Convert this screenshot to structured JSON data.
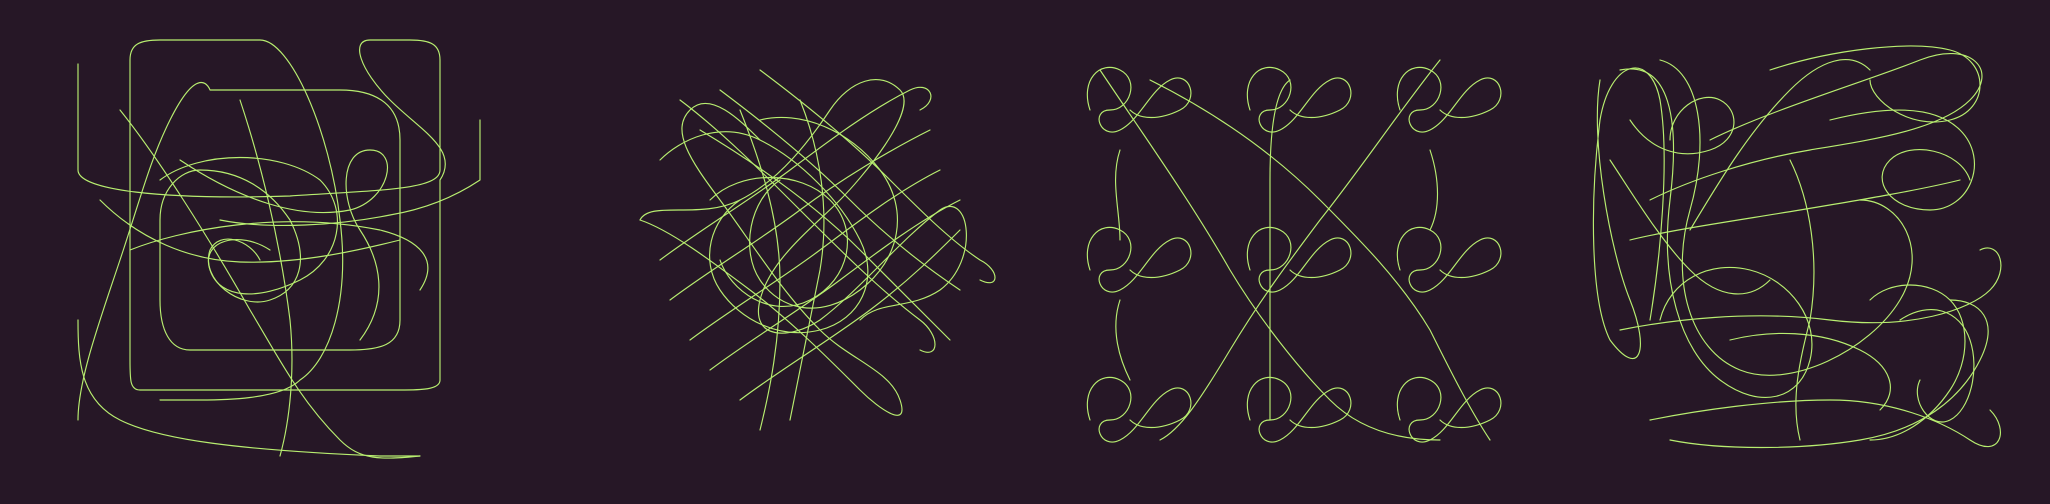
{
  "palette": {
    "background": "#261726",
    "line": "#b8ee70"
  },
  "panels": [
    {
      "name": "tangle-panel-1"
    },
    {
      "name": "tangle-panel-2"
    },
    {
      "name": "tangle-panel-3"
    },
    {
      "name": "tangle-panel-4"
    }
  ]
}
